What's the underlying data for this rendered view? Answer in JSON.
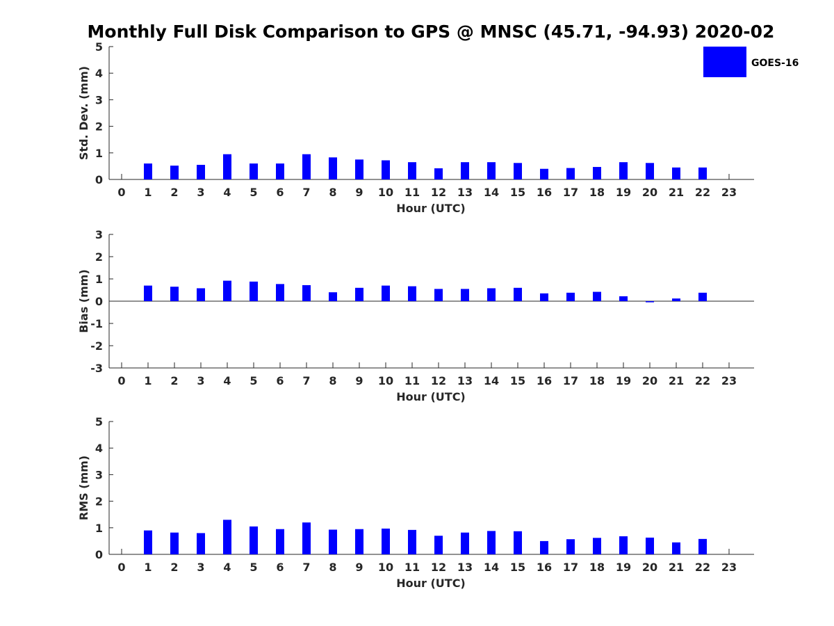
{
  "chart_data": {
    "title": "Monthly Full Disk Comparison to GPS @ MNSC (45.71, -94.93) 2020-02",
    "type": "bar",
    "legend": {
      "label": "GOES-16",
      "color": "#0000ff",
      "placement": "top-right"
    },
    "categories": [
      "0",
      "1",
      "2",
      "3",
      "4",
      "5",
      "6",
      "7",
      "8",
      "9",
      "10",
      "11",
      "12",
      "13",
      "14",
      "15",
      "16",
      "17",
      "18",
      "19",
      "20",
      "21",
      "22",
      "23"
    ],
    "panels": [
      {
        "key": "std",
        "ylabel": "Std. Dev. (mm)",
        "xlabel": "Hour (UTC)",
        "ylim": [
          0,
          5
        ],
        "yticks": [
          0,
          1,
          2,
          3,
          4,
          5
        ],
        "values": [
          null,
          0.6,
          0.52,
          0.55,
          0.95,
          0.6,
          0.6,
          0.95,
          0.83,
          0.75,
          0.72,
          0.65,
          0.42,
          0.65,
          0.65,
          0.62,
          0.4,
          0.43,
          0.47,
          0.65,
          0.62,
          0.45,
          0.45,
          null
        ]
      },
      {
        "key": "bias",
        "ylabel": "Bias (mm)",
        "xlabel": "Hour (UTC)",
        "ylim": [
          -3,
          3
        ],
        "yticks": [
          -3,
          -2,
          -1,
          0,
          1,
          2,
          3
        ],
        "values": [
          null,
          0.7,
          0.65,
          0.58,
          0.92,
          0.88,
          0.77,
          0.72,
          0.4,
          0.6,
          0.7,
          0.67,
          0.55,
          0.55,
          0.58,
          0.6,
          0.35,
          0.38,
          0.42,
          0.22,
          -0.05,
          0.12,
          0.38,
          null
        ]
      },
      {
        "key": "rms",
        "ylabel": "RMS (mm)",
        "xlabel": "Hour (UTC)",
        "ylim": [
          0,
          5
        ],
        "yticks": [
          0,
          1,
          2,
          3,
          4,
          5
        ],
        "values": [
          null,
          0.9,
          0.82,
          0.8,
          1.3,
          1.05,
          0.95,
          1.2,
          0.93,
          0.95,
          0.97,
          0.92,
          0.7,
          0.82,
          0.88,
          0.87,
          0.5,
          0.57,
          0.62,
          0.68,
          0.63,
          0.45,
          0.58,
          null
        ]
      }
    ]
  }
}
